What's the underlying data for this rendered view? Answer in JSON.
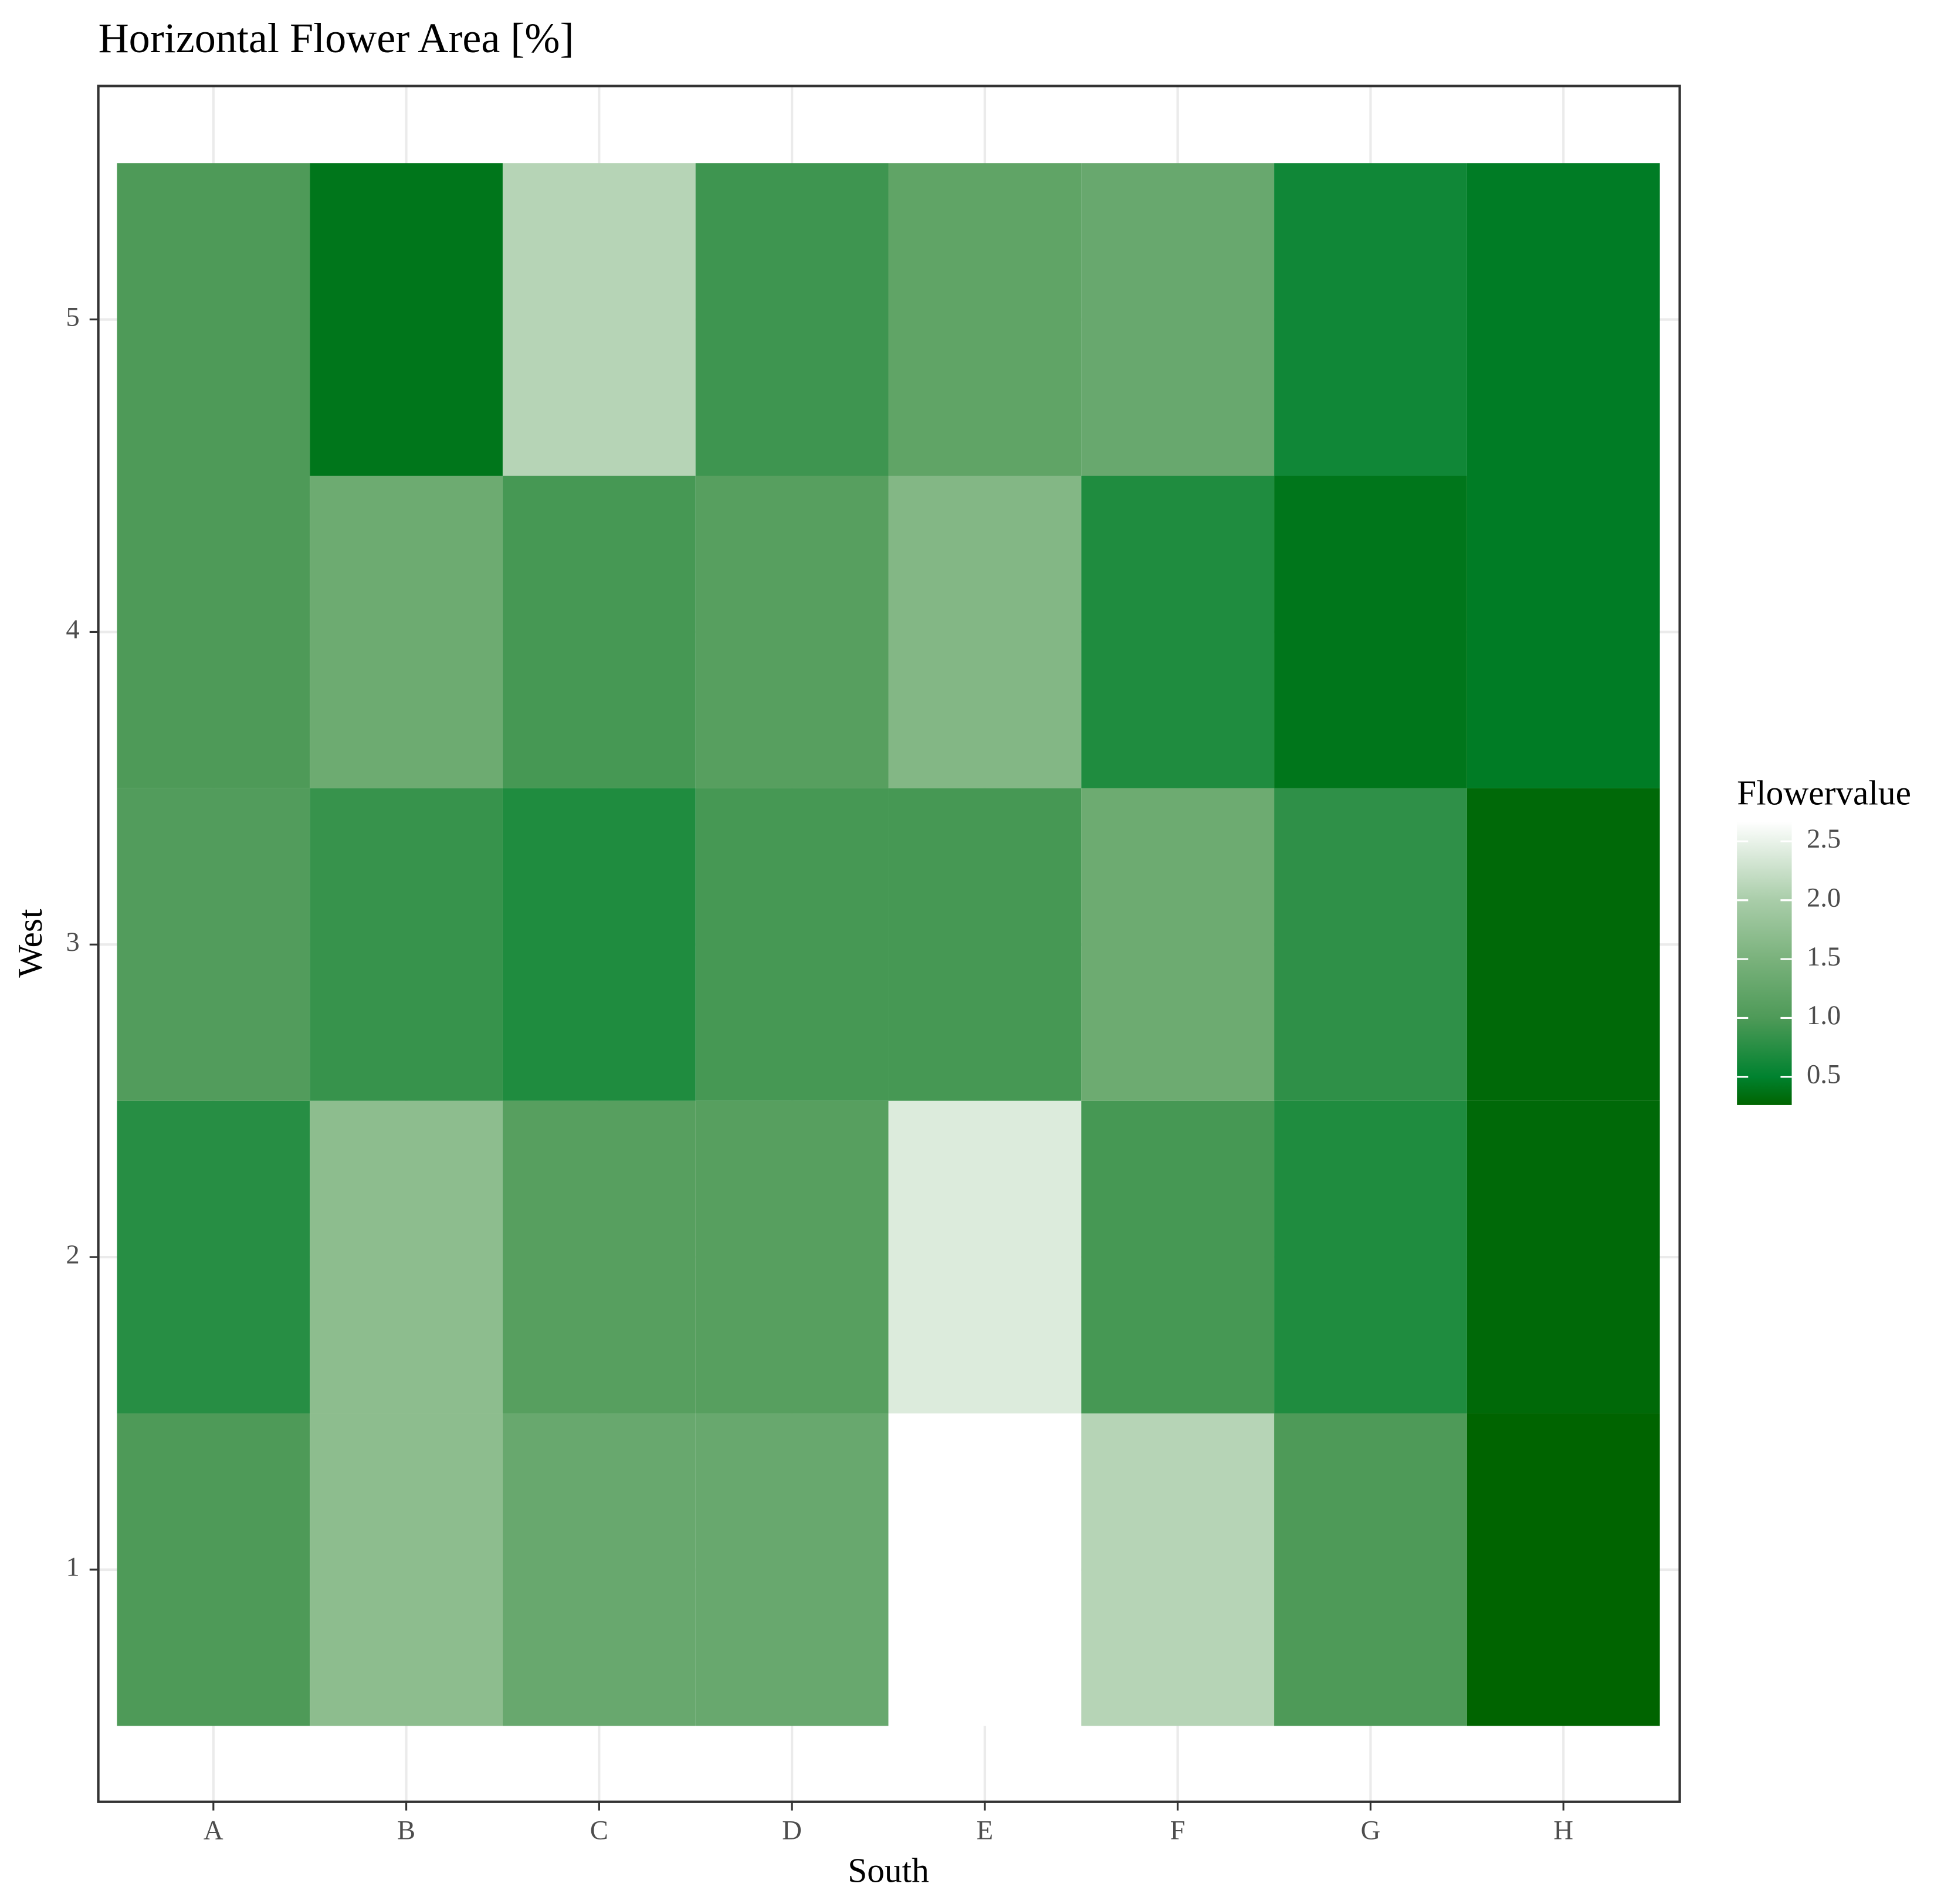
{
  "chart_data": {
    "type": "heatmap",
    "title": "Horizontal Flower Area [%]",
    "x_label": "South",
    "y_label": "West",
    "categories": [
      "A",
      "B",
      "C",
      "D",
      "E",
      "F",
      "G",
      "H"
    ],
    "y": [
      1,
      2,
      3,
      4,
      5
    ],
    "values": [
      [
        1.0,
        1.7,
        1.3,
        1.3,
        2.67,
        2.1,
        1.0,
        0.26
      ],
      [
        0.75,
        1.7,
        1.1,
        1.1,
        2.4,
        0.95,
        0.7,
        0.3
      ],
      [
        1.05,
        0.85,
        0.7,
        0.95,
        0.95,
        1.35,
        0.8,
        0.3
      ],
      [
        1.0,
        1.35,
        0.95,
        1.1,
        1.6,
        0.7,
        0.4,
        0.45
      ],
      [
        1.0,
        0.4,
        2.1,
        0.9,
        1.2,
        1.3,
        0.6,
        0.45
      ]
    ],
    "yticks": [
      1,
      2,
      3,
      4,
      5
    ],
    "grid": true,
    "legend": {
      "title": "Flowervalue",
      "ticks": [
        0.5,
        1.0,
        1.5,
        2.0,
        2.5
      ],
      "lim": [
        0.26,
        2.67
      ],
      "colors": [
        {
          "value": 0.26,
          "color": "#006400"
        },
        {
          "value": 0.5,
          "color": "#00822F"
        },
        {
          "value": 1.0,
          "color": "#4E9A58"
        },
        {
          "value": 1.5,
          "color": "#7AB27C"
        },
        {
          "value": 2.0,
          "color": "#A9CDA9"
        },
        {
          "value": 2.67,
          "color": "#FFFFFF"
        }
      ]
    }
  }
}
